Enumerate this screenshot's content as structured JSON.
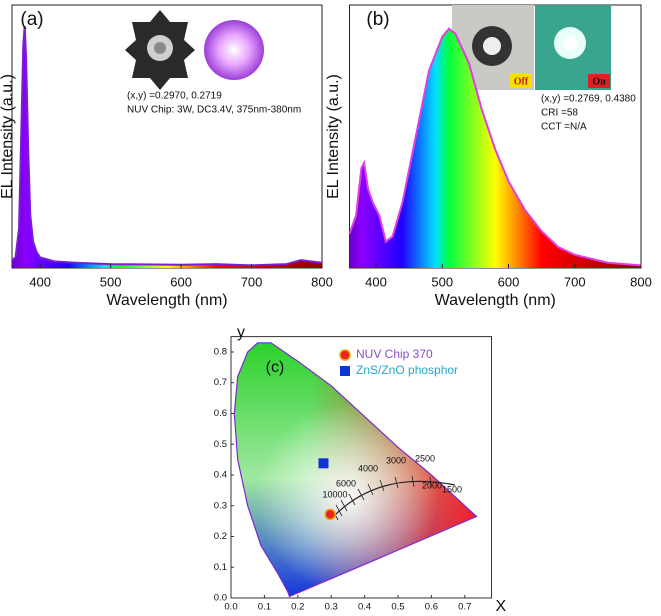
{
  "chart_data": [
    {
      "type": "area",
      "panel_label": "(a)",
      "xlabel": "Wavelength (nm)",
      "ylabel": "EL Intensity (a.u.)",
      "x": [
        360,
        365,
        370,
        373,
        376,
        378,
        380,
        383,
        386,
        390,
        395,
        400,
        420,
        450,
        500,
        600,
        650,
        700,
        750,
        770,
        800
      ],
      "values": [
        0.03,
        0.04,
        0.15,
        0.5,
        0.85,
        0.92,
        0.8,
        0.45,
        0.2,
        0.1,
        0.06,
        0.04,
        0.025,
        0.02,
        0.015,
        0.012,
        0.015,
        0.01,
        0.015,
        0.03,
        0.02
      ],
      "color": "#7a1fd0",
      "xlim": [
        360,
        800
      ],
      "ylim": [
        0,
        1
      ],
      "xticks": [
        400,
        500,
        600,
        700,
        800
      ],
      "annotations": [
        "(x,y) =0.2970, 0.2719",
        "NUV Chip:  3W, DC3.4V, 375nm-380nm"
      ]
    },
    {
      "type": "area",
      "panel_label": "(b)",
      "xlabel": "Wavelength (nm)",
      "ylabel": "EL Intensity (a.u.)",
      "x": [
        360,
        370,
        378,
        382,
        388,
        395,
        405,
        415,
        425,
        440,
        460,
        480,
        500,
        510,
        520,
        540,
        560,
        580,
        600,
        625,
        650,
        675,
        700,
        750,
        800
      ],
      "values": [
        0.13,
        0.2,
        0.38,
        0.4,
        0.3,
        0.25,
        0.2,
        0.1,
        0.12,
        0.25,
        0.5,
        0.75,
        0.88,
        0.91,
        0.89,
        0.78,
        0.6,
        0.45,
        0.33,
        0.22,
        0.14,
        0.08,
        0.05,
        0.02,
        0.01
      ],
      "color": "#e040e0",
      "xlim": [
        360,
        800
      ],
      "ylim": [
        0,
        1
      ],
      "xticks": [
        400,
        500,
        600,
        700,
        800
      ],
      "annotations": [
        "(x,y) =0.2769, 0.4380",
        "CRI =58",
        "CCT =N/A"
      ],
      "photo_labels": [
        "Off",
        "On"
      ]
    },
    {
      "type": "scatter",
      "panel_label": "(c)",
      "xlabel": "X",
      "ylabel": "y",
      "series": [
        {
          "name": "NUV Chip 370",
          "color": "#e8251c",
          "x": [
            0.297
          ],
          "values": [
            0.2719
          ]
        },
        {
          "name": "ZnS/ZnO phosphor",
          "color": "#1035d6",
          "x": [
            0.2769
          ],
          "values": [
            0.438
          ]
        }
      ],
      "xlim": [
        0,
        0.78
      ],
      "ylim": [
        0,
        0.85
      ],
      "xticks": [
        {
          "value": 0,
          "label": "0.0"
        },
        0.1,
        0.2,
        0.3,
        0.4,
        0.5,
        0.6,
        0.7
      ],
      "yticks": [
        {
          "value": 0,
          "label": "0.0"
        },
        0.1,
        0.2,
        0.3,
        0.4,
        0.5,
        0.6,
        0.7,
        0.8
      ],
      "cct_labels": [
        "10000",
        "6000",
        "4000",
        "3000",
        "2500",
        "2000",
        "1500"
      ]
    }
  ]
}
